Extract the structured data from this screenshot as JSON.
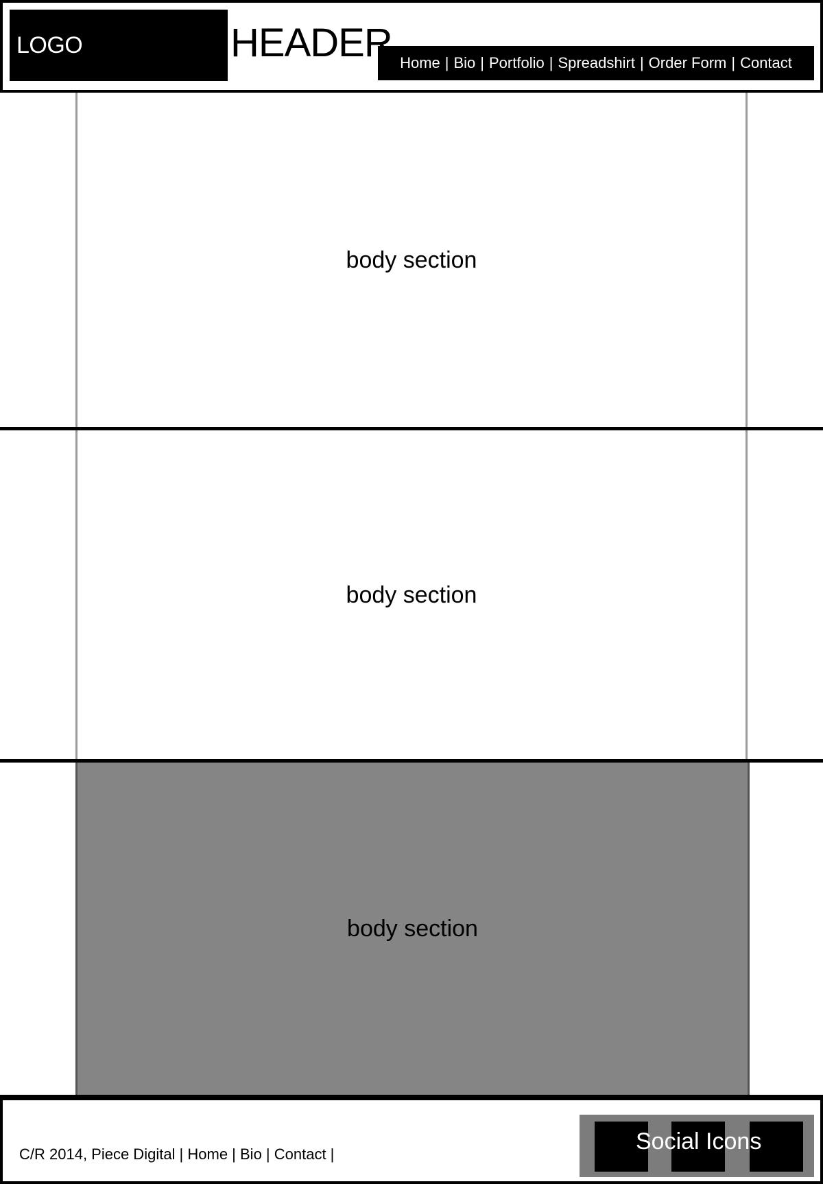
{
  "header": {
    "logo_text": "LOGO",
    "title": "HEADER",
    "nav": {
      "items": [
        "Home",
        "Bio",
        "Portfolio",
        "Spreadshirt",
        "Order Form",
        "Contact"
      ],
      "separator": "|"
    }
  },
  "main": {
    "sections": [
      {
        "label": "body section",
        "background": "#ffffff"
      },
      {
        "label": "body section",
        "background": "#ffffff"
      },
      {
        "label": "body section",
        "background": "#858585"
      }
    ]
  },
  "footer": {
    "text": "C/R 2014, Piece Digital | Home | Bio | Contact |",
    "social_label": "Social Icons"
  },
  "colors": {
    "primary": "#000000",
    "background": "#ffffff",
    "grey_section": "#858585",
    "social_bar": "#7c7c7c"
  }
}
